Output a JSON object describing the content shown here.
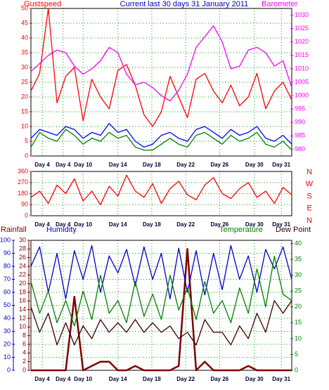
{
  "chart_data": [
    {
      "type": "line",
      "title": "Current last 30 days 31 January 2011",
      "x": [
        0,
        1,
        2,
        3,
        4,
        5,
        6,
        7,
        8,
        9,
        10,
        11,
        12,
        13,
        14,
        15,
        16,
        17,
        18,
        19,
        20,
        21,
        22,
        23,
        24,
        25,
        26,
        27,
        28,
        29,
        30
      ],
      "xlim": [
        0,
        30
      ],
      "xticks": [
        {
          "value": 1.3,
          "label": "Day 4"
        },
        {
          "value": 3.7,
          "label": "Day 4"
        },
        {
          "value": 6.0,
          "label": "Day 10"
        },
        {
          "value": 10.0,
          "label": "Day 14"
        },
        {
          "value": 13.9,
          "label": "Day 18"
        },
        {
          "value": 17.8,
          "label": "Day 22"
        },
        {
          "value": 21.7,
          "label": "Day 26"
        },
        {
          "value": 25.7,
          "label": "Day 30"
        },
        {
          "value": 28.8,
          "label": "Day 31"
        }
      ],
      "ylim": [
        0,
        50
      ],
      "yticks": [
        0,
        5,
        10,
        15,
        20,
        25,
        30,
        35,
        40,
        45,
        50
      ],
      "y2lim": [
        977.5,
        1032.5
      ],
      "y2ticks": [
        980,
        985,
        990,
        995,
        1000,
        1005,
        1010,
        1015,
        1020,
        1025,
        1030
      ],
      "grid": true,
      "series": [
        {
          "name": "Gustspeed",
          "color": "#ff0000",
          "values": [
            22,
            28,
            50,
            18,
            27,
            30,
            12,
            26,
            20,
            16,
            29,
            31,
            24,
            14,
            10,
            15,
            27,
            20,
            13,
            26,
            28,
            22,
            18,
            24,
            17,
            20,
            28,
            16,
            22,
            25,
            19
          ]
        },
        {
          "color": "#0000ff",
          "values": [
            6,
            9,
            8,
            7,
            10,
            9,
            6,
            8,
            7,
            11,
            8,
            9,
            5,
            3,
            4,
            7,
            8,
            6,
            5,
            9,
            10,
            8,
            6,
            9,
            7,
            8,
            10,
            6,
            5,
            7,
            4
          ]
        },
        {
          "color": "#008000",
          "values": [
            3,
            8,
            6,
            5,
            9,
            7,
            4,
            6,
            5,
            8,
            6,
            7,
            3,
            2,
            2,
            4,
            6,
            4,
            3,
            7,
            8,
            6,
            4,
            7,
            5,
            6,
            8,
            4,
            3,
            5,
            2
          ]
        },
        {
          "name": "Barometer",
          "color": "#ff00ff",
          "axis": "y2",
          "values": [
            1009,
            1012,
            1015,
            1017,
            1016,
            1011,
            1008,
            1010,
            1013,
            1018,
            1016,
            1008,
            1004,
            1005,
            1003,
            1000,
            998,
            1002,
            1008,
            1018,
            1022,
            1026,
            1020,
            1010,
            1011,
            1017,
            1018,
            1016,
            1011,
            1013,
            1003
          ]
        }
      ]
    },
    {
      "type": "line",
      "x": [
        0,
        1,
        2,
        3,
        4,
        5,
        6,
        7,
        8,
        9,
        10,
        11,
        12,
        13,
        14,
        15,
        16,
        17,
        18,
        19,
        20,
        21,
        22,
        23,
        24,
        25,
        26,
        27,
        28,
        29,
        30
      ],
      "xlim": [
        0,
        30
      ],
      "xticks": [
        {
          "value": 1.3,
          "label": "Day 4"
        },
        {
          "value": 3.7,
          "label": "Day 4"
        },
        {
          "value": 6.0,
          "label": "Day 10"
        },
        {
          "value": 10.0,
          "label": "Day 14"
        },
        {
          "value": 13.9,
          "label": "Day 18"
        },
        {
          "value": 17.8,
          "label": "Day 22"
        },
        {
          "value": 21.7,
          "label": "Day 26"
        },
        {
          "value": 25.7,
          "label": "Day 30"
        },
        {
          "value": 28.8,
          "label": "Day 31"
        }
      ],
      "ylim": [
        0,
        360
      ],
      "yticks": [
        0,
        90,
        180,
        270,
        360
      ],
      "compass": [
        "N",
        "W",
        "S",
        "E",
        "N"
      ],
      "grid": true,
      "series": [
        {
          "color": "#ff0000",
          "values": [
            150,
            200,
            100,
            250,
            180,
            300,
            120,
            200,
            90,
            240,
            160,
            330,
            200,
            150,
            260,
            100,
            220,
            280,
            170,
            130,
            250,
            310,
            180,
            140,
            220,
            270,
            150,
            200,
            100,
            230,
            170
          ]
        }
      ]
    },
    {
      "type": "line",
      "x": [
        0,
        1,
        2,
        3,
        4,
        5,
        6,
        7,
        8,
        9,
        10,
        11,
        12,
        13,
        14,
        15,
        16,
        17,
        18,
        19,
        20,
        21,
        22,
        23,
        24,
        25,
        26,
        27,
        28,
        29,
        30
      ],
      "xlim": [
        0,
        30
      ],
      "xticks": [
        {
          "value": 1.3,
          "label": "Day 4"
        },
        {
          "value": 3.7,
          "label": "Day 4"
        },
        {
          "value": 6.0,
          "label": "Day 10"
        },
        {
          "value": 10.0,
          "label": "Day 14"
        },
        {
          "value": 13.9,
          "label": "Day 18"
        },
        {
          "value": 17.8,
          "label": "Day 22"
        },
        {
          "value": 21.7,
          "label": "Day 26"
        },
        {
          "value": 25.7,
          "label": "Day 30"
        },
        {
          "value": 28.8,
          "label": "Day 31"
        }
      ],
      "ylim": [
        0,
        100
      ],
      "yticks": [
        0,
        10,
        20,
        30,
        40,
        50,
        60,
        70,
        80,
        90,
        100
      ],
      "y2lim": [
        0,
        41
      ],
      "y2ticks": [
        0,
        5,
        10,
        15,
        20,
        25,
        30,
        35,
        40
      ],
      "y3lim": [
        0,
        30
      ],
      "y3ticks": [
        0,
        2,
        4,
        6,
        8,
        10,
        12,
        14,
        16,
        18,
        20,
        22,
        24,
        26,
        28,
        30
      ],
      "grid": true,
      "series": [
        {
          "name": "Rainfall",
          "color": "#800000",
          "axis": "y3",
          "values": [
            0,
            0,
            0,
            0,
            0,
            17,
            0,
            1,
            2,
            2,
            0,
            0,
            1,
            0,
            0,
            0,
            0,
            1,
            28,
            0,
            2,
            0,
            0,
            0,
            0,
            1,
            0,
            0,
            0,
            0,
            0
          ]
        },
        {
          "name": "Humidity",
          "color": "#0000cc",
          "values": [
            80,
            95,
            60,
            90,
            55,
            92,
            70,
            96,
            60,
            88,
            75,
            93,
            65,
            95,
            70,
            90,
            55,
            94,
            60,
            92,
            58,
            90,
            62,
            96,
            70,
            88,
            60,
            93,
            78,
            95,
            70
          ]
        },
        {
          "name": "Temperature",
          "color": "#008000",
          "axis": "y2",
          "values": [
            28,
            18,
            25,
            15,
            22,
            14,
            25,
            16,
            30,
            18,
            22,
            15,
            28,
            17,
            24,
            16,
            30,
            19,
            26,
            16,
            28,
            18,
            22,
            15,
            26,
            18,
            32,
            20,
            36,
            24,
            22
          ]
        },
        {
          "name": "Dew Point",
          "color": "#3a0000",
          "axis": "y2",
          "values": [
            20,
            12,
            18,
            8,
            15,
            8,
            14,
            10,
            16,
            12,
            15,
            12,
            16,
            12,
            15,
            12,
            14,
            10,
            12,
            8,
            16,
            12,
            12,
            8,
            14,
            10,
            18,
            12,
            22,
            18,
            22
          ]
        }
      ]
    }
  ]
}
